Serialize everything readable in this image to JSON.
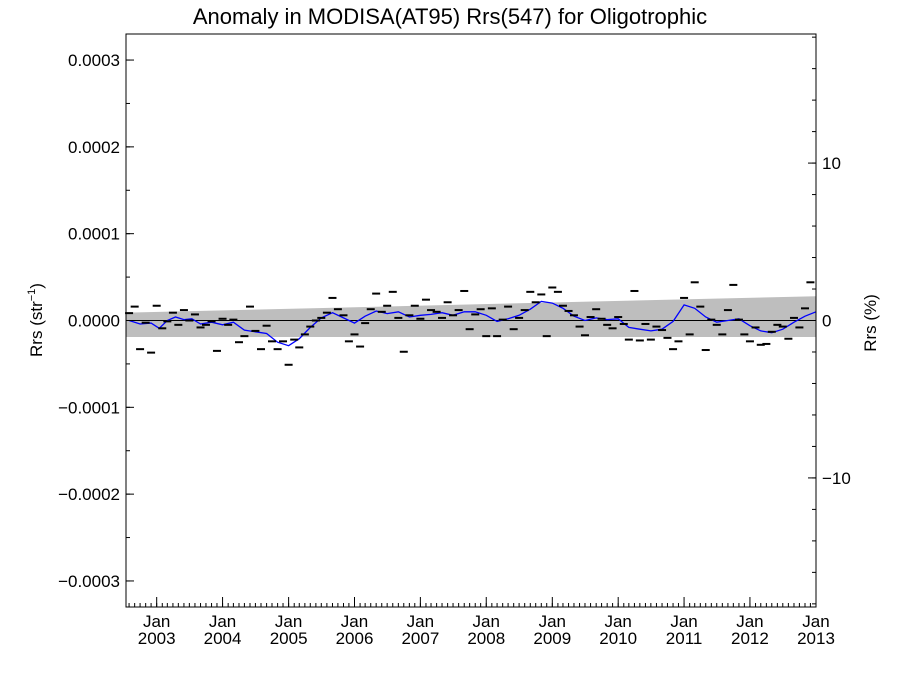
{
  "chart_data": {
    "type": "scatter",
    "title": "Anomaly in MODISA(AT95) Rrs(547) for Oligotrophic",
    "ylabel_left": "Rrs (str",
    "ylabel_left_sup": "−1",
    "ylabel_left_close": ")",
    "ylabel_right": "Rrs (%)",
    "xlim": [
      "2002-07-15",
      "2013-01-01"
    ],
    "ylim_left": [
      -0.00033,
      0.00033
    ],
    "ylim_right": [
      -18.2,
      18.2
    ],
    "yticks_left": [
      {
        "value": 0.0003,
        "label": "0.0003"
      },
      {
        "value": 0.0002,
        "label": "0.0002"
      },
      {
        "value": 0.0001,
        "label": "0.0001"
      },
      {
        "value": 0.0,
        "label": "0.0000"
      },
      {
        "value": -0.0001,
        "label": "−0.0001"
      },
      {
        "value": -0.0002,
        "label": "−0.0002"
      },
      {
        "value": -0.0003,
        "label": "−0.0003"
      }
    ],
    "yticks_right": [
      {
        "value": 10,
        "label": "10"
      },
      {
        "value": 0,
        "label": "0"
      },
      {
        "value": -10,
        "label": "−10"
      }
    ],
    "xticks": [
      {
        "date": "2003-01-01",
        "month": "Jan",
        "year": "2003"
      },
      {
        "date": "2004-01-01",
        "month": "Jan",
        "year": "2004"
      },
      {
        "date": "2005-01-01",
        "month": "Jan",
        "year": "2005"
      },
      {
        "date": "2006-01-01",
        "month": "Jan",
        "year": "2006"
      },
      {
        "date": "2007-01-01",
        "month": "Jan",
        "year": "2007"
      },
      {
        "date": "2008-01-01",
        "month": "Jan",
        "year": "2008"
      },
      {
        "date": "2009-01-01",
        "month": "Jan",
        "year": "2009"
      },
      {
        "date": "2010-01-01",
        "month": "Jan",
        "year": "2010"
      },
      {
        "date": "2011-01-01",
        "month": "Jan",
        "year": "2011"
      },
      {
        "date": "2012-01-01",
        "month": "Jan",
        "year": "2012"
      },
      {
        "date": "2013-01-01",
        "month": "Jan",
        "year": "2013"
      }
    ],
    "zero_line": 0.0,
    "shaded_band": {
      "x": [
        "2002-07-15",
        "2013-01-01"
      ],
      "upper": [
        9e-06,
        2.8e-05
      ],
      "lower": [
        -1.9e-05,
        -1.9e-05
      ],
      "color": "#bebebe"
    },
    "scatter_series": {
      "name": "",
      "marker": "dash",
      "color": "#000000",
      "points": [
        {
          "x": "2002-08-01",
          "y": 8.5e-06
        },
        {
          "x": "2002-09-01",
          "y": 1.6e-05
        },
        {
          "x": "2002-10-01",
          "y": -3.3e-05
        },
        {
          "x": "2002-11-01",
          "y": -2.5e-06
        },
        {
          "x": "2002-12-01",
          "y": -3.7e-05
        },
        {
          "x": "2003-01-01",
          "y": 1.7e-05
        },
        {
          "x": "2003-02-01",
          "y": -9e-06
        },
        {
          "x": "2003-03-01",
          "y": -1e-06
        },
        {
          "x": "2003-04-01",
          "y": 9e-06
        },
        {
          "x": "2003-05-01",
          "y": -5e-06
        },
        {
          "x": "2003-06-01",
          "y": 1.2e-05
        },
        {
          "x": "2003-07-01",
          "y": 0.0
        },
        {
          "x": "2003-08-01",
          "y": 7e-06
        },
        {
          "x": "2003-09-01",
          "y": -8e-06
        },
        {
          "x": "2003-10-01",
          "y": -5e-06
        },
        {
          "x": "2003-11-01",
          "y": -1e-06
        },
        {
          "x": "2003-12-01",
          "y": -3.5e-05
        },
        {
          "x": "2004-01-01",
          "y": 2e-06
        },
        {
          "x": "2004-02-01",
          "y": -5e-06
        },
        {
          "x": "2004-03-01",
          "y": 1e-06
        },
        {
          "x": "2004-04-01",
          "y": -2.5e-05
        },
        {
          "x": "2004-05-01",
          "y": -1.8e-05
        },
        {
          "x": "2004-06-01",
          "y": 1.6e-05
        },
        {
          "x": "2004-07-01",
          "y": -1.2e-05
        },
        {
          "x": "2004-08-01",
          "y": -3.3e-05
        },
        {
          "x": "2004-09-01",
          "y": -6e-06
        },
        {
          "x": "2004-10-01",
          "y": -2.4e-05
        },
        {
          "x": "2004-11-01",
          "y": -3.3e-05
        },
        {
          "x": "2004-12-01",
          "y": -2.4e-05
        },
        {
          "x": "2005-01-01",
          "y": -5.1e-05
        },
        {
          "x": "2005-02-01",
          "y": -2.2e-05
        },
        {
          "x": "2005-03-01",
          "y": -3.1e-05
        },
        {
          "x": "2005-04-01",
          "y": -1.6e-05
        },
        {
          "x": "2005-05-01",
          "y": -7e-06
        },
        {
          "x": "2005-06-01",
          "y": 0.0
        },
        {
          "x": "2005-07-01",
          "y": 3e-06
        },
        {
          "x": "2005-08-01",
          "y": 9e-06
        },
        {
          "x": "2005-09-01",
          "y": 2.6e-05
        },
        {
          "x": "2005-10-01",
          "y": 1.3e-05
        },
        {
          "x": "2005-11-01",
          "y": 6e-06
        },
        {
          "x": "2005-12-01",
          "y": -2.4e-05
        },
        {
          "x": "2006-01-01",
          "y": -1.6e-05
        },
        {
          "x": "2006-02-01",
          "y": -3e-05
        },
        {
          "x": "2006-03-01",
          "y": -3e-06
        },
        {
          "x": "2006-04-01",
          "y": 1.3e-05
        },
        {
          "x": "2006-05-01",
          "y": 3.1e-05
        },
        {
          "x": "2006-06-01",
          "y": 1e-05
        },
        {
          "x": "2006-07-01",
          "y": 1.7e-05
        },
        {
          "x": "2006-08-01",
          "y": 3.3e-05
        },
        {
          "x": "2006-09-01",
          "y": 3e-06
        },
        {
          "x": "2006-10-01",
          "y": -3.6e-05
        },
        {
          "x": "2006-11-01",
          "y": 6e-06
        },
        {
          "x": "2006-12-01",
          "y": 1.7e-05
        },
        {
          "x": "2007-01-01",
          "y": 2e-06
        },
        {
          "x": "2007-02-01",
          "y": 2.4e-05
        },
        {
          "x": "2007-03-01",
          "y": 1.2e-05
        },
        {
          "x": "2007-04-01",
          "y": 1e-05
        },
        {
          "x": "2007-05-01",
          "y": 3e-06
        },
        {
          "x": "2007-06-01",
          "y": 2.1e-05
        },
        {
          "x": "2007-07-01",
          "y": 6e-06
        },
        {
          "x": "2007-08-01",
          "y": 1.2e-05
        },
        {
          "x": "2007-09-01",
          "y": 3.4e-05
        },
        {
          "x": "2007-10-01",
          "y": -1e-05
        },
        {
          "x": "2007-11-01",
          "y": 7e-06
        },
        {
          "x": "2007-12-01",
          "y": 1.3e-05
        },
        {
          "x": "2008-01-01",
          "y": -1.8e-05
        },
        {
          "x": "2008-02-01",
          "y": 1.4e-05
        },
        {
          "x": "2008-03-01",
          "y": -1.8e-05
        },
        {
          "x": "2008-04-01",
          "y": 1e-06
        },
        {
          "x": "2008-05-01",
          "y": 1.6e-05
        },
        {
          "x": "2008-06-01",
          "y": -1e-05
        },
        {
          "x": "2008-07-01",
          "y": 3e-06
        },
        {
          "x": "2008-08-01",
          "y": 1.2e-05
        },
        {
          "x": "2008-09-01",
          "y": 3.3e-05
        },
        {
          "x": "2008-10-01",
          "y": 2.1e-05
        },
        {
          "x": "2008-11-01",
          "y": 3e-05
        },
        {
          "x": "2008-12-01",
          "y": -1.8e-05
        },
        {
          "x": "2009-01-01",
          "y": 3.8e-05
        },
        {
          "x": "2009-02-01",
          "y": 3.3e-05
        },
        {
          "x": "2009-03-01",
          "y": 1.7e-05
        },
        {
          "x": "2009-04-01",
          "y": 1.1e-05
        },
        {
          "x": "2009-05-01",
          "y": 6e-06
        },
        {
          "x": "2009-06-01",
          "y": -7e-06
        },
        {
          "x": "2009-07-01",
          "y": -1.7e-05
        },
        {
          "x": "2009-08-01",
          "y": 4e-06
        },
        {
          "x": "2009-09-01",
          "y": 1.3e-05
        },
        {
          "x": "2009-10-01",
          "y": 2e-06
        },
        {
          "x": "2009-11-01",
          "y": -5e-06
        },
        {
          "x": "2009-12-01",
          "y": -9e-06
        },
        {
          "x": "2010-01-01",
          "y": 4e-06
        },
        {
          "x": "2010-02-01",
          "y": -4e-06
        },
        {
          "x": "2010-03-01",
          "y": -2.2e-05
        },
        {
          "x": "2010-04-01",
          "y": 3.4e-05
        },
        {
          "x": "2010-05-01",
          "y": -2.3e-05
        },
        {
          "x": "2010-06-01",
          "y": -4e-06
        },
        {
          "x": "2010-07-01",
          "y": -2.2e-05
        },
        {
          "x": "2010-08-01",
          "y": -7e-06
        },
        {
          "x": "2010-09-01",
          "y": -1.1e-05
        },
        {
          "x": "2010-10-01",
          "y": -2e-05
        },
        {
          "x": "2010-11-01",
          "y": -3.3e-05
        },
        {
          "x": "2010-12-01",
          "y": -2.4e-05
        },
        {
          "x": "2011-01-01",
          "y": 2.6e-05
        },
        {
          "x": "2011-02-01",
          "y": -1.6e-05
        },
        {
          "x": "2011-03-01",
          "y": 4.4e-05
        },
        {
          "x": "2011-04-01",
          "y": 1.6e-05
        },
        {
          "x": "2011-05-01",
          "y": -3.4e-05
        },
        {
          "x": "2011-06-01",
          "y": 1e-06
        },
        {
          "x": "2011-07-01",
          "y": -5e-06
        },
        {
          "x": "2011-08-01",
          "y": -1.6e-05
        },
        {
          "x": "2011-09-01",
          "y": 1.2e-05
        },
        {
          "x": "2011-10-01",
          "y": 4.1e-05
        },
        {
          "x": "2011-11-01",
          "y": 1e-06
        },
        {
          "x": "2011-12-01",
          "y": -1.6e-05
        },
        {
          "x": "2012-01-01",
          "y": -2.4e-05
        },
        {
          "x": "2012-02-01",
          "y": -8e-06
        },
        {
          "x": "2012-03-01",
          "y": -2.8e-05
        },
        {
          "x": "2012-04-01",
          "y": -2.7e-05
        },
        {
          "x": "2012-05-01",
          "y": -1.3e-05
        },
        {
          "x": "2012-06-01",
          "y": -5e-06
        },
        {
          "x": "2012-07-01",
          "y": -7e-06
        },
        {
          "x": "2012-08-01",
          "y": -2.1e-05
        },
        {
          "x": "2012-09-01",
          "y": 3e-06
        },
        {
          "x": "2012-10-01",
          "y": -8e-06
        },
        {
          "x": "2012-11-01",
          "y": 1.4e-05
        },
        {
          "x": "2012-12-01",
          "y": 4.4e-05
        }
      ]
    },
    "line_series": {
      "name": "",
      "color": "#0000ff",
      "points": [
        {
          "x": "2002-08-01",
          "y": 0.0
        },
        {
          "x": "2002-10-01",
          "y": -4e-06
        },
        {
          "x": "2002-12-01",
          "y": -3e-06
        },
        {
          "x": "2003-01-15",
          "y": -9e-06
        },
        {
          "x": "2003-03-01",
          "y": 0.0
        },
        {
          "x": "2003-04-15",
          "y": 4e-06
        },
        {
          "x": "2003-06-01",
          "y": 1e-06
        },
        {
          "x": "2003-07-15",
          "y": 2e-06
        },
        {
          "x": "2003-09-01",
          "y": -4e-06
        },
        {
          "x": "2003-11-01",
          "y": -2e-06
        },
        {
          "x": "2004-01-01",
          "y": -5e-06
        },
        {
          "x": "2004-03-01",
          "y": -2e-06
        },
        {
          "x": "2004-05-01",
          "y": -1.1e-05
        },
        {
          "x": "2004-07-01",
          "y": -1.3e-05
        },
        {
          "x": "2004-09-01",
          "y": -1.5e-05
        },
        {
          "x": "2004-11-01",
          "y": -2.5e-05
        },
        {
          "x": "2005-01-01",
          "y": -2.9e-05
        },
        {
          "x": "2005-03-01",
          "y": -2.1e-05
        },
        {
          "x": "2005-05-01",
          "y": -8e-06
        },
        {
          "x": "2005-07-01",
          "y": 3e-06
        },
        {
          "x": "2005-09-01",
          "y": 9e-06
        },
        {
          "x": "2005-11-01",
          "y": 3e-06
        },
        {
          "x": "2006-01-01",
          "y": -3e-06
        },
        {
          "x": "2006-03-01",
          "y": 5e-06
        },
        {
          "x": "2006-05-01",
          "y": 1.1e-05
        },
        {
          "x": "2006-07-01",
          "y": 8e-06
        },
        {
          "x": "2006-09-01",
          "y": 1e-05
        },
        {
          "x": "2006-11-01",
          "y": 4e-06
        },
        {
          "x": "2007-01-01",
          "y": 6e-06
        },
        {
          "x": "2007-03-01",
          "y": 7e-06
        },
        {
          "x": "2007-05-01",
          "y": 9e-06
        },
        {
          "x": "2007-07-01",
          "y": 6e-06
        },
        {
          "x": "2007-09-01",
          "y": 1e-05
        },
        {
          "x": "2007-11-01",
          "y": 1e-05
        },
        {
          "x": "2008-01-01",
          "y": 6e-06
        },
        {
          "x": "2008-03-01",
          "y": -1e-06
        },
        {
          "x": "2008-05-01",
          "y": 2e-06
        },
        {
          "x": "2008-07-01",
          "y": 6e-06
        },
        {
          "x": "2008-09-01",
          "y": 1.3e-05
        },
        {
          "x": "2008-11-01",
          "y": 2.2e-05
        },
        {
          "x": "2009-01-01",
          "y": 2e-05
        },
        {
          "x": "2009-03-01",
          "y": 1.4e-05
        },
        {
          "x": "2009-05-01",
          "y": 5e-06
        },
        {
          "x": "2009-07-01",
          "y": 0.0
        },
        {
          "x": "2009-09-01",
          "y": 3e-06
        },
        {
          "x": "2009-11-01",
          "y": 1e-06
        },
        {
          "x": "2010-01-01",
          "y": 2e-06
        },
        {
          "x": "2010-03-01",
          "y": -8e-06
        },
        {
          "x": "2010-05-01",
          "y": -1e-05
        },
        {
          "x": "2010-07-01",
          "y": -1.2e-05
        },
        {
          "x": "2010-09-01",
          "y": -1e-05
        },
        {
          "x": "2010-11-01",
          "y": -1e-06
        },
        {
          "x": "2011-01-01",
          "y": 1.8e-05
        },
        {
          "x": "2011-03-01",
          "y": 1.4e-05
        },
        {
          "x": "2011-05-01",
          "y": 4e-06
        },
        {
          "x": "2011-07-01",
          "y": -2e-06
        },
        {
          "x": "2011-09-01",
          "y": 0.0
        },
        {
          "x": "2011-11-01",
          "y": 2e-06
        },
        {
          "x": "2012-01-01",
          "y": -6e-06
        },
        {
          "x": "2012-03-01",
          "y": -1.2e-05
        },
        {
          "x": "2012-05-01",
          "y": -1.4e-05
        },
        {
          "x": "2012-07-01",
          "y": -1e-05
        },
        {
          "x": "2012-09-01",
          "y": -2e-06
        },
        {
          "x": "2012-11-01",
          "y": 5e-06
        },
        {
          "x": "2013-01-01",
          "y": 1e-05
        }
      ]
    }
  }
}
